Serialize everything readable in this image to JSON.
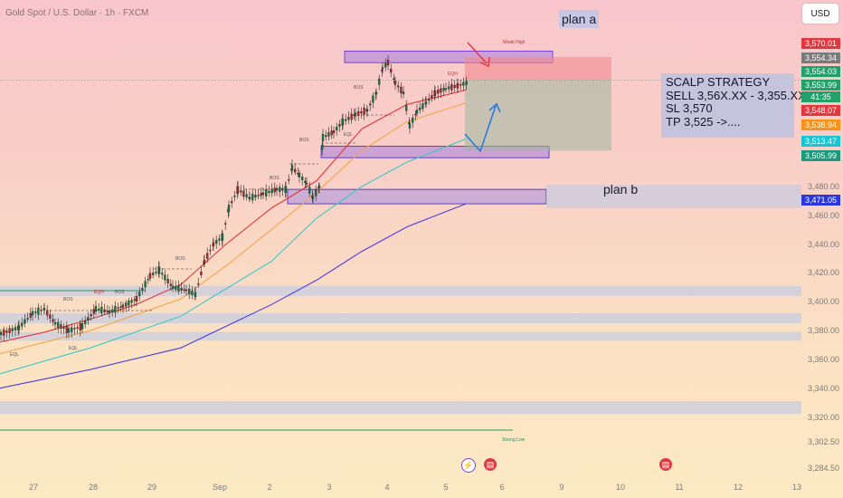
{
  "header": {
    "symbol_label": "Gold Spot / U.S. Dollar · 1h · FXCM",
    "currency": "USD"
  },
  "annotations": {
    "plan_a": "plan a",
    "plan_b": "plan b",
    "strategy_lines": [
      "SCALP STRATEGY",
      "SELL 3,56X.XX - 3,355.XX",
      "SL 3,570",
      "TP 3,525 ->...."
    ],
    "weak_high": "Weak High",
    "strong_low": "Strong Low",
    "eqh": "EQH",
    "eql": "EQL",
    "bos": "BOS"
  },
  "chart_data": {
    "type": "candlestick",
    "symbol": "Gold Spot / U.S. Dollar",
    "interval": "1h",
    "source": "FXCM",
    "ylim": [
      3284.5,
      3590
    ],
    "y_ticks": [
      3302.5,
      3320,
      3340,
      3360,
      3380,
      3400,
      3420,
      3440,
      3460,
      3480
    ],
    "y_tick_labels": [
      "3,302.50",
      "3,320.00",
      "3,340.00",
      "3,360.00",
      "3,380.00",
      "3,400.00",
      "3,420.00",
      "3,440.00",
      "3,460.00",
      "3,480.00"
    ],
    "bottom_label": "3,284.50",
    "x_labels": [
      "27",
      "28",
      "29",
      "Sep",
      "2",
      "3",
      "4",
      "5",
      "6",
      "9",
      "10",
      "11",
      "12",
      "13"
    ],
    "price_tags": [
      {
        "label": "3,570.01",
        "value": 3570.01,
        "color": "#e0383e"
      },
      {
        "label": "3,554.34",
        "value": 3554.34,
        "color": "#7a7a7a"
      },
      {
        "label": "3,554.03",
        "value": 3554.03,
        "color": "#22a06b"
      },
      {
        "label": "3,553.99",
        "value": 3553.99,
        "color": "#22a06b"
      },
      {
        "label": "41:35",
        "value": 3547.4,
        "color": "#22a06b"
      },
      {
        "label": "3,548.07",
        "value": 3548.07,
        "color": "#e0383e"
      },
      {
        "label": "3,538.94",
        "value": 3538.94,
        "color": "#f7931a"
      },
      {
        "label": "3,513.47",
        "value": 3513.47,
        "color": "#19c4d4"
      },
      {
        "label": "3,505.99",
        "value": 3505.99,
        "color": "#1a9a7a"
      },
      {
        "label": "3,471.05",
        "value": 3471.05,
        "color": "#2a36e0"
      }
    ],
    "price_path": [
      [
        0,
        3378
      ],
      [
        20,
        3382
      ],
      [
        35,
        3392
      ],
      [
        48,
        3395
      ],
      [
        60,
        3385
      ],
      [
        75,
        3380
      ],
      [
        90,
        3383
      ],
      [
        105,
        3395
      ],
      [
        120,
        3393
      ],
      [
        135,
        3397
      ],
      [
        150,
        3402
      ],
      [
        165,
        3418
      ],
      [
        175,
        3422
      ],
      [
        190,
        3410
      ],
      [
        205,
        3408
      ],
      [
        215,
        3405
      ],
      [
        225,
        3428
      ],
      [
        235,
        3440
      ],
      [
        245,
        3445
      ],
      [
        252,
        3465
      ],
      [
        262,
        3478
      ],
      [
        275,
        3472
      ],
      [
        290,
        3475
      ],
      [
        305,
        3478
      ],
      [
        315,
        3478
      ],
      [
        322,
        3493
      ],
      [
        330,
        3488
      ],
      [
        338,
        3482
      ],
      [
        345,
        3472
      ],
      [
        352,
        3480
      ],
      [
        356,
        3514
      ],
      [
        368,
        3518
      ],
      [
        378,
        3525
      ],
      [
        392,
        3530
      ],
      [
        405,
        3533
      ],
      [
        415,
        3545
      ],
      [
        422,
        3562
      ],
      [
        428,
        3566
      ],
      [
        436,
        3552
      ],
      [
        445,
        3545
      ],
      [
        452,
        3522
      ],
      [
        460,
        3532
      ],
      [
        470,
        3538
      ],
      [
        480,
        3545
      ],
      [
        492,
        3548
      ],
      [
        505,
        3550
      ],
      [
        515,
        3552
      ]
    ],
    "moving_averages": [
      {
        "name": "ma-red",
        "color": "#e0383e",
        "points": [
          [
            0,
            3372
          ],
          [
            50,
            3379
          ],
          [
            100,
            3388
          ],
          [
            150,
            3398
          ],
          [
            200,
            3412
          ],
          [
            250,
            3440
          ],
          [
            300,
            3465
          ],
          [
            350,
            3484
          ],
          [
            400,
            3520
          ],
          [
            450,
            3537
          ],
          [
            515,
            3547
          ]
        ]
      },
      {
        "name": "ma-orange",
        "color": "#f2a54a",
        "points": [
          [
            0,
            3364
          ],
          [
            100,
            3380
          ],
          [
            200,
            3402
          ],
          [
            250,
            3425
          ],
          [
            300,
            3450
          ],
          [
            350,
            3476
          ],
          [
            400,
            3505
          ],
          [
            450,
            3525
          ],
          [
            515,
            3538
          ]
        ]
      },
      {
        "name": "ma-cyan",
        "color": "#3cc7c7",
        "points": [
          [
            0,
            3350
          ],
          [
            100,
            3368
          ],
          [
            200,
            3390
          ],
          [
            300,
            3428
          ],
          [
            350,
            3458
          ],
          [
            400,
            3480
          ],
          [
            450,
            3497
          ],
          [
            515,
            3513
          ]
        ]
      },
      {
        "name": "ma-blue",
        "color": "#4a3ce0",
        "points": [
          [
            0,
            3340
          ],
          [
            100,
            3353
          ],
          [
            200,
            3368
          ],
          [
            300,
            3398
          ],
          [
            350,
            3415
          ],
          [
            400,
            3435
          ],
          [
            450,
            3452
          ],
          [
            515,
            3468
          ]
        ]
      }
    ],
    "zones": [
      {
        "name": "zone-plan-a",
        "y1": 3574,
        "y2": 3566,
        "x1": 381,
        "x2": 611,
        "fill": "#a77ee0",
        "stroke": "#7a3fd6"
      },
      {
        "name": "zone-mid",
        "y1": 3508,
        "y2": 3500,
        "x1": 355,
        "x2": 607,
        "fill": "#a77ee0",
        "stroke": "#5a3fd6"
      },
      {
        "name": "zone-plan-b",
        "y1": 3478,
        "y2": 3468,
        "x1": 318,
        "x2": 604,
        "fill": "#a78ee0",
        "stroke": "#5a3fd6"
      },
      {
        "name": "band-3480",
        "y1": 3481,
        "y2": 3465,
        "x1": 604,
        "x2": 886,
        "fill": "#c8cce0",
        "stroke": "none"
      },
      {
        "name": "band-3410",
        "y1": 3411,
        "y2": 3404,
        "x1": 0,
        "x2": 886,
        "fill": "#c8cce0",
        "stroke": "none"
      },
      {
        "name": "band-3390",
        "y1": 3392,
        "y2": 3385,
        "x1": 0,
        "x2": 886,
        "fill": "#c8cce0",
        "stroke": "none"
      },
      {
        "name": "band-3375",
        "y1": 3379,
        "y2": 3373,
        "x1": 0,
        "x2": 886,
        "fill": "#c8cce0",
        "stroke": "none"
      },
      {
        "name": "band-3328",
        "y1": 3331,
        "y2": 3322,
        "x1": 0,
        "x2": 886,
        "fill": "#c8cce0",
        "stroke": "none"
      }
    ],
    "position": {
      "entry": 3554,
      "stop": 3570,
      "target": 3505,
      "x1": 514,
      "x2": 676
    }
  }
}
